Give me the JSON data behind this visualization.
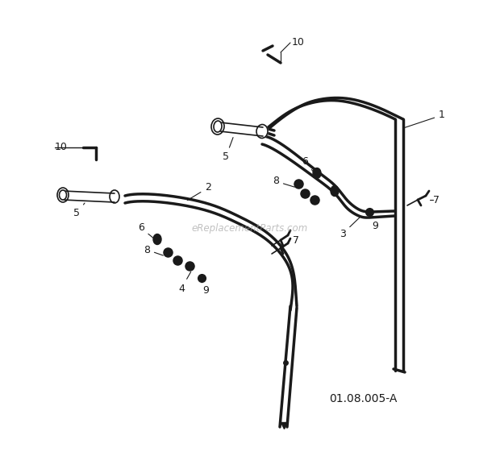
{
  "bg_color": "#ffffff",
  "line_color": "#1a1a1a",
  "diagram_code": "01.08.005-A",
  "watermark": "eReplacementParts.com",
  "lw_main": 2.5,
  "lw_thin": 1.2,
  "lw_grip": 1.5
}
